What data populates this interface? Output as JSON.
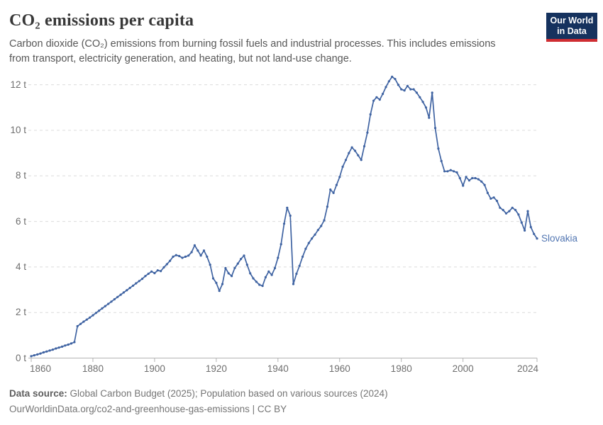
{
  "header": {
    "title": "CO₂ emissions per capita",
    "subtitle": "Carbon dioxide (CO₂) emissions from burning fossil fuels and industrial processes. This includes emissions from transport, electricity generation, and heating, but not land-use change.",
    "logo": {
      "line1": "Our World",
      "line2": "in Data"
    }
  },
  "chart_data": {
    "type": "line",
    "title": "CO₂ emissions per capita",
    "xlabel": "",
    "ylabel": "",
    "xlim": [
      1860,
      2024
    ],
    "ylim": [
      0,
      12
    ],
    "grid": "horizontal-dashed",
    "legend_position": "end-of-line-label",
    "x_ticks": [
      1860,
      1880,
      1900,
      1920,
      1940,
      1960,
      1980,
      2000,
      2024
    ],
    "x_tick_labels": [
      "1860",
      "1880",
      "1900",
      "1920",
      "1940",
      "1960",
      "1980",
      "2000",
      "2024"
    ],
    "y_ticks": [
      0,
      2,
      4,
      6,
      8,
      10,
      12
    ],
    "y_tick_labels": [
      "0 t",
      "2 t",
      "4 t",
      "6 t",
      "8 t",
      "10 t",
      "12 t"
    ],
    "series": [
      {
        "name": "Slovakia",
        "color": "#3f63a2",
        "label_color": "#5276b2",
        "unit": "t",
        "x_start": 1860,
        "x_end": 2024,
        "x_step": 1,
        "values": [
          0.08,
          0.12,
          0.16,
          0.2,
          0.25,
          0.29,
          0.33,
          0.37,
          0.42,
          0.46,
          0.5,
          0.55,
          0.59,
          0.64,
          0.7,
          1.4,
          1.5,
          1.6,
          1.69,
          1.78,
          1.88,
          1.98,
          2.08,
          2.18,
          2.28,
          2.38,
          2.48,
          2.58,
          2.68,
          2.78,
          2.88,
          2.98,
          3.08,
          3.18,
          3.28,
          3.38,
          3.48,
          3.6,
          3.7,
          3.8,
          3.73,
          3.85,
          3.82,
          3.98,
          4.12,
          4.27,
          4.45,
          4.52,
          4.48,
          4.4,
          4.45,
          4.5,
          4.65,
          4.95,
          4.72,
          4.5,
          4.72,
          4.45,
          4.1,
          3.5,
          3.3,
          2.95,
          3.25,
          3.95,
          3.72,
          3.6,
          3.95,
          4.15,
          4.35,
          4.5,
          4.1,
          3.72,
          3.5,
          3.35,
          3.22,
          3.17,
          3.55,
          3.8,
          3.65,
          3.95,
          4.4,
          5.0,
          5.9,
          6.6,
          6.25,
          3.25,
          3.7,
          4.05,
          4.45,
          4.8,
          5.05,
          5.25,
          5.42,
          5.62,
          5.8,
          6.05,
          6.65,
          7.4,
          7.25,
          7.6,
          7.95,
          8.4,
          8.7,
          9.0,
          9.25,
          9.1,
          8.9,
          8.7,
          9.3,
          9.9,
          10.7,
          11.3,
          11.45,
          11.35,
          11.6,
          11.9,
          12.15,
          12.35,
          12.25,
          12.0,
          11.8,
          11.75,
          11.95,
          11.8,
          11.8,
          11.65,
          11.45,
          11.25,
          11.0,
          10.55,
          11.65,
          10.1,
          9.2,
          8.65,
          8.2,
          8.2,
          8.25,
          8.2,
          8.15,
          7.9,
          7.57,
          7.95,
          7.8,
          7.9,
          7.9,
          7.85,
          7.75,
          7.6,
          7.25,
          7.0,
          7.05,
          6.9,
          6.6,
          6.5,
          6.35,
          6.45,
          6.6,
          6.5,
          6.3,
          5.95,
          5.6,
          6.45,
          5.75,
          5.45,
          5.25
        ]
      }
    ]
  },
  "footer": {
    "source_label": "Data source:",
    "source_text": " Global Carbon Budget (2025); Population based on various sources (2024)",
    "license_line": "OurWorldinData.org/co2-and-greenhouse-gas-emissions | CC BY"
  },
  "colors": {
    "line": "#3f63a2",
    "entity_label": "#5276b2",
    "gridline": "#dcdcdc",
    "axis": "#b3b3b3",
    "tick_text": "#6e6e6e",
    "title_text": "#383838",
    "subtitle_text": "#575757",
    "footer_text": "#757575",
    "logo_bg": "#15325e",
    "logo_red": "#cf2d32"
  }
}
